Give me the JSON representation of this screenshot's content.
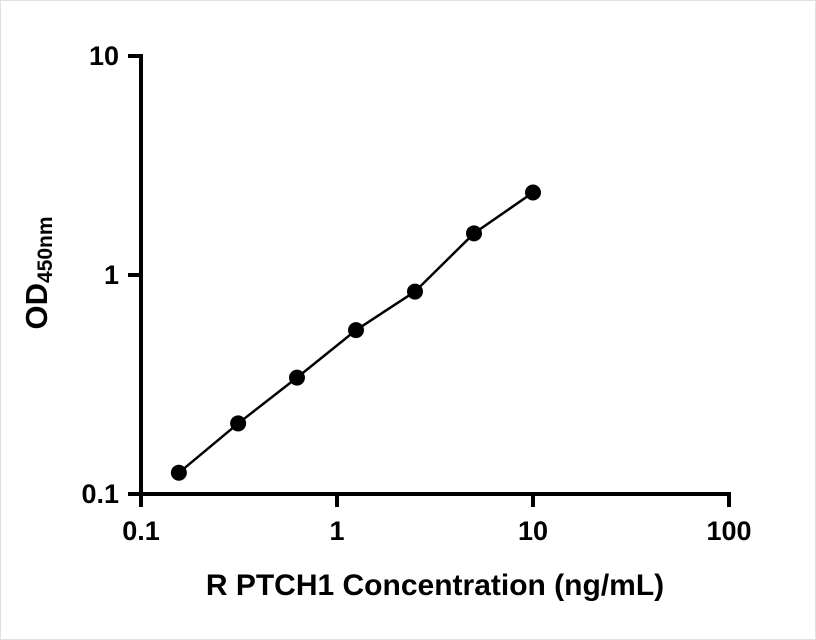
{
  "chart_data": {
    "type": "scatter",
    "title": "",
    "xlabel": "R PTCH1 Concentration (ng/mL)",
    "ylabel": "OD",
    "ylabel_sub": "450nm",
    "xscale": "log",
    "yscale": "log",
    "xlim": [
      0.1,
      100
    ],
    "ylim": [
      0.1,
      10
    ],
    "x_tick_labels": [
      "0.1",
      "1",
      "10",
      "100"
    ],
    "y_tick_labels": [
      "0.1",
      "1",
      "10"
    ],
    "x_ticks": [
      0.1,
      1,
      10,
      100
    ],
    "y_ticks": [
      0.1,
      1,
      10
    ],
    "grid": false,
    "legend": "none",
    "x": [
      0.156,
      0.313,
      0.625,
      1.25,
      2.5,
      5,
      10
    ],
    "y": [
      0.125,
      0.21,
      0.34,
      0.56,
      0.84,
      1.55,
      2.38
    ],
    "marker": "filled-circle",
    "marker_color": "#000000",
    "line_color": "#000000",
    "axis_color": "#000000",
    "background_color": "#ffffff"
  }
}
